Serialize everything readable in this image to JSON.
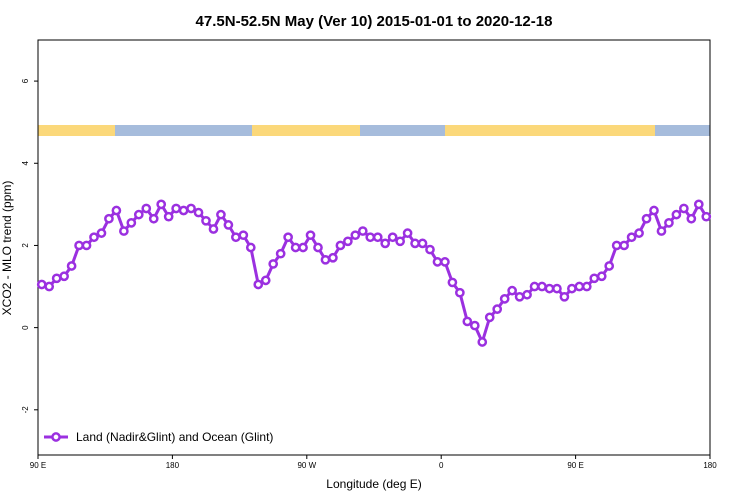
{
  "chart_data": {
    "type": "line",
    "title": "47.5N-52.5N May (Ver 10)   2015-01-01 to 2020-12-18",
    "x_label": "Longitude (deg E)",
    "y_label": "XCO2 - MLO trend (ppm)",
    "xlim": [
      90,
      540
    ],
    "xticks": [
      {
        "value": 90,
        "label": "90 E"
      },
      180,
      {
        "value": 270,
        "label": "90 W"
      },
      {
        "value": 360,
        "label": "0"
      },
      {
        "value": 450,
        "label": "90 E"
      },
      {
        "value": 540,
        "label": "180"
      }
    ],
    "ylim": [
      -3.1,
      7
    ],
    "yticks": [
      -2,
      0,
      2,
      4,
      6
    ],
    "legend": "bottom-left",
    "x": [
      92.5,
      97.5,
      102.5,
      107.5,
      112.5,
      117.5,
      122.5,
      127.5,
      132.5,
      137.5,
      142.5,
      147.5,
      152.5,
      157.5,
      162.5,
      167.5,
      172.5,
      177.5,
      182.5,
      187.5,
      192.5,
      197.5,
      202.5,
      207.5,
      212.5,
      217.5,
      222.5,
      227.5,
      232.5,
      237.5,
      242.5,
      247.5,
      252.5,
      257.5,
      262.5,
      267.5,
      272.5,
      277.5,
      282.5,
      287.5,
      292.5,
      297.5,
      302.5,
      307.5,
      312.5,
      317.5,
      322.5,
      327.5,
      332.5,
      337.5,
      342.5,
      347.5,
      352.5,
      357.5,
      362.5,
      367.5,
      372.5,
      377.5,
      382.5,
      387.5,
      392.5,
      397.5,
      402.5,
      407.5,
      412.5,
      417.5,
      422.5,
      427.5,
      432.5,
      437.5,
      442.5,
      447.5,
      452.5,
      457.5,
      462.5,
      467.5,
      472.5,
      477.5,
      482.5,
      487.5,
      492.5,
      497.5,
      502.5,
      507.5,
      512.5,
      517.5,
      522.5,
      527.5,
      532.5,
      537.5
    ],
    "series": [
      {
        "name": "Land (Nadir&Glint) and Ocean (Glint)",
        "color": "#9b30e0",
        "values": [
          1.05,
          1.0,
          1.2,
          1.25,
          1.5,
          2.0,
          2.0,
          2.2,
          2.3,
          2.65,
          2.85,
          2.35,
          2.55,
          2.75,
          2.9,
          2.65,
          3.0,
          2.7,
          2.9,
          2.85,
          2.9,
          2.8,
          2.6,
          2.4,
          2.75,
          2.5,
          2.2,
          2.25,
          1.95,
          1.05,
          1.15,
          1.55,
          1.8,
          2.2,
          1.95,
          1.95,
          2.25,
          1.95,
          1.65,
          1.7,
          2.0,
          2.1,
          2.25,
          2.35,
          2.2,
          2.2,
          2.05,
          2.2,
          2.1,
          2.3,
          2.05,
          2.05,
          1.9,
          1.6,
          1.6,
          1.1,
          0.85,
          0.15,
          0.05,
          -0.35,
          0.25,
          0.45,
          0.7,
          0.9,
          0.75,
          0.8,
          1.0,
          1.0,
          0.95,
          0.95,
          0.75,
          0.95,
          1.0,
          1.0,
          1.2,
          1.25,
          1.5,
          2.0,
          2.0,
          2.2,
          2.3,
          2.65,
          2.85,
          2.35,
          2.55,
          2.75,
          2.9,
          2.65,
          3.0,
          2.7
        ]
      }
    ]
  }
}
